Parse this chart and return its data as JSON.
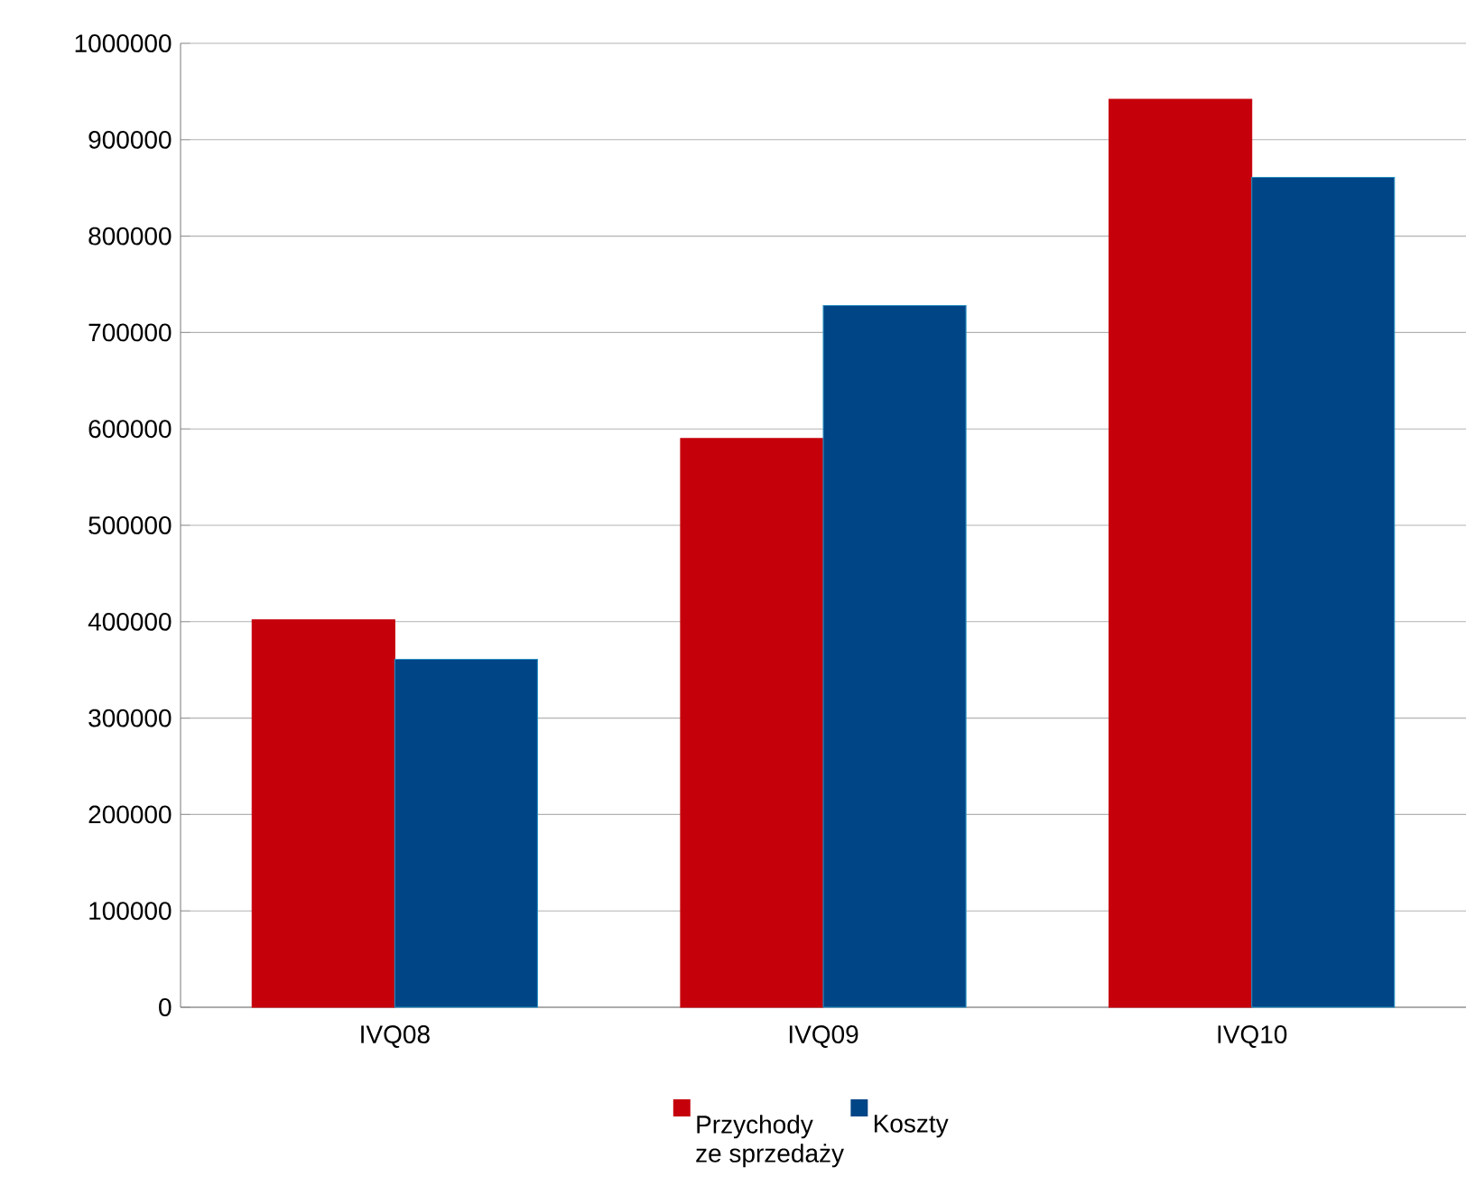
{
  "chart_data": {
    "type": "bar",
    "categories": [
      "IVQ08",
      "IVQ09",
      "IVQ10"
    ],
    "series": [
      {
        "name": "Przychody ze sprzedaży",
        "color": "#c5000b",
        "values": [
          402000,
          590000,
          942000
        ]
      },
      {
        "name": "Koszty",
        "color": "#004586",
        "values": [
          361000,
          728000,
          861000
        ]
      }
    ],
    "ylim": [
      0,
      1000000
    ],
    "yticks": [
      0,
      100000,
      200000,
      300000,
      400000,
      500000,
      600000,
      700000,
      800000,
      900000,
      1000000
    ],
    "grid": "y",
    "legend": "bottom"
  }
}
